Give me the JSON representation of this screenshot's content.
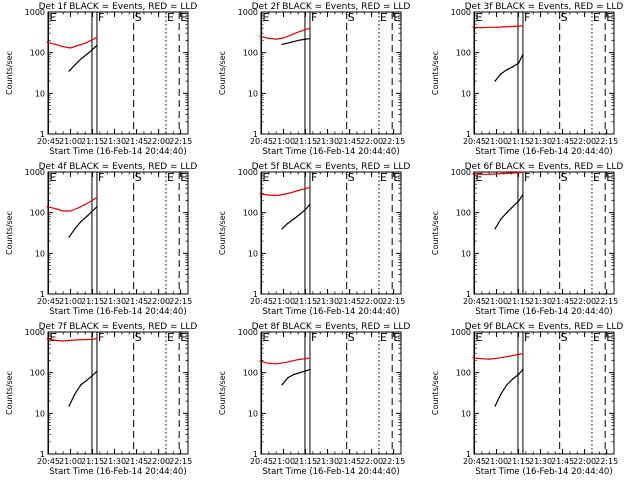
{
  "figure": {
    "xlabel": "Start Time (16-Feb-14 20:44:40)",
    "ylabel": "Counts/sec",
    "x_tick_labels": [
      "20:45",
      "21:00",
      "21:15",
      "21:30",
      "21:45",
      "22:00",
      "22:15"
    ],
    "y_tick_labels": [
      "1",
      "10",
      "100",
      "1000"
    ],
    "marker_labels": [
      "E",
      "F",
      "S",
      "E",
      "E"
    ],
    "colors": {
      "events": "#000000",
      "lld": "#e00000",
      "axes": "#000000"
    }
  },
  "chart_data": [
    {
      "type": "line",
      "title": "Det 1f BLACK = Events, RED = LLD",
      "xlim": [
        "20:44:40",
        "22:20"
      ],
      "ylim": [
        1,
        1000
      ],
      "yscale": "log",
      "series": [
        {
          "color": "#000000",
          "x": [
            "20:59",
            "21:03",
            "21:07",
            "21:11",
            "21:15",
            "21:18"
          ],
          "y": [
            35,
            50,
            70,
            90,
            120,
            150
          ]
        },
        {
          "color": "#e00000",
          "x": [
            "20:44",
            "20:50",
            "20:55",
            "21:00",
            "21:05",
            "21:10",
            "21:15",
            "21:18"
          ],
          "y": [
            180,
            160,
            140,
            130,
            150,
            170,
            210,
            240
          ]
        }
      ],
      "markers": [
        {
          "label": "E",
          "time": "20:45",
          "style": "solid"
        },
        {
          "label": "F",
          "time": "21:18",
          "style": "solid"
        },
        {
          "label": "S",
          "time": "21:43",
          "style": "dashed"
        },
        {
          "label": "E",
          "time": "22:05",
          "style": "dotted"
        },
        {
          "label": "E",
          "time": "22:14",
          "style": "dashed"
        }
      ]
    },
    {
      "type": "line",
      "title": "Det 2f BLACK = Events, RED = LLD",
      "xlim": [
        "20:44:40",
        "22:20"
      ],
      "ylim": [
        1,
        1000
      ],
      "yscale": "log",
      "series": [
        {
          "color": "#000000",
          "x": [
            "20:59",
            "21:05",
            "21:10",
            "21:15",
            "21:18"
          ],
          "y": [
            160,
            180,
            200,
            215,
            220
          ]
        },
        {
          "color": "#e00000",
          "x": [
            "20:44",
            "20:50",
            "20:55",
            "21:00",
            "21:05",
            "21:10",
            "21:15",
            "21:18"
          ],
          "y": [
            250,
            225,
            215,
            230,
            270,
            320,
            370,
            400
          ]
        }
      ],
      "markers": [
        {
          "label": "E",
          "time": "20:45",
          "style": "solid"
        },
        {
          "label": "F",
          "time": "21:18",
          "style": "solid"
        },
        {
          "label": "S",
          "time": "21:43",
          "style": "dashed"
        },
        {
          "label": "E",
          "time": "22:05",
          "style": "dotted"
        },
        {
          "label": "E",
          "time": "22:14",
          "style": "dashed"
        }
      ]
    },
    {
      "type": "line",
      "title": "Det 3f BLACK = Events, RED = LLD",
      "xlim": [
        "20:44:40",
        "22:20"
      ],
      "ylim": [
        1,
        1000
      ],
      "yscale": "log",
      "series": [
        {
          "color": "#000000",
          "x": [
            "20:59",
            "21:03",
            "21:07",
            "21:11",
            "21:15",
            "21:18"
          ],
          "y": [
            20,
            30,
            38,
            45,
            55,
            90
          ]
        },
        {
          "color": "#e00000",
          "x": [
            "20:44",
            "20:50",
            "20:55",
            "21:00",
            "21:05",
            "21:10",
            "21:15",
            "21:18"
          ],
          "y": [
            420,
            410,
            420,
            420,
            430,
            440,
            450,
            460
          ]
        }
      ],
      "markers": [
        {
          "label": "E",
          "time": "20:45",
          "style": "solid"
        },
        {
          "label": "F",
          "time": "21:18",
          "style": "solid"
        },
        {
          "label": "S",
          "time": "21:43",
          "style": "dashed"
        },
        {
          "label": "E",
          "time": "22:05",
          "style": "dotted"
        },
        {
          "label": "E",
          "time": "22:14",
          "style": "dashed"
        }
      ]
    },
    {
      "type": "line",
      "title": "Det 4f BLACK = Events, RED = LLD",
      "xlim": [
        "20:44:40",
        "22:20"
      ],
      "ylim": [
        1,
        1000
      ],
      "yscale": "log",
      "series": [
        {
          "color": "#000000",
          "x": [
            "20:59",
            "21:03",
            "21:07",
            "21:11",
            "21:15",
            "21:18"
          ],
          "y": [
            25,
            40,
            60,
            80,
            110,
            140
          ]
        },
        {
          "color": "#e00000",
          "x": [
            "20:44",
            "20:50",
            "20:55",
            "21:00",
            "21:05",
            "21:10",
            "21:15",
            "21:18"
          ],
          "y": [
            140,
            125,
            110,
            110,
            130,
            160,
            200,
            240
          ]
        }
      ],
      "markers": [
        {
          "label": "E",
          "time": "20:45",
          "style": "solid"
        },
        {
          "label": "F",
          "time": "21:18",
          "style": "solid"
        },
        {
          "label": "S",
          "time": "21:43",
          "style": "dashed"
        },
        {
          "label": "E",
          "time": "22:05",
          "style": "dotted"
        },
        {
          "label": "E",
          "time": "22:14",
          "style": "dashed"
        }
      ]
    },
    {
      "type": "line",
      "title": "Det 5f BLACK = Events, RED = LLD",
      "xlim": [
        "20:44:40",
        "22:20"
      ],
      "ylim": [
        1,
        1000
      ],
      "yscale": "log",
      "series": [
        {
          "color": "#000000",
          "x": [
            "20:59",
            "21:03",
            "21:07",
            "21:11",
            "21:15",
            "21:18"
          ],
          "y": [
            40,
            55,
            70,
            90,
            120,
            160
          ]
        },
        {
          "color": "#e00000",
          "x": [
            "20:44",
            "20:50",
            "20:55",
            "21:00",
            "21:05",
            "21:10",
            "21:15",
            "21:18"
          ],
          "y": [
            290,
            270,
            265,
            280,
            310,
            350,
            390,
            420
          ]
        }
      ],
      "markers": [
        {
          "label": "E",
          "time": "20:45",
          "style": "solid"
        },
        {
          "label": "F",
          "time": "21:18",
          "style": "solid"
        },
        {
          "label": "S",
          "time": "21:43",
          "style": "dashed"
        },
        {
          "label": "E",
          "time": "22:05",
          "style": "dotted"
        },
        {
          "label": "E",
          "time": "22:14",
          "style": "dashed"
        }
      ]
    },
    {
      "type": "line",
      "title": "Det 6f BLACK = Events, RED = LLD",
      "xlim": [
        "20:44:40",
        "22:20"
      ],
      "ylim": [
        1,
        1000
      ],
      "yscale": "log",
      "series": [
        {
          "color": "#000000",
          "x": [
            "20:59",
            "21:03",
            "21:07",
            "21:11",
            "21:15",
            "21:18"
          ],
          "y": [
            40,
            70,
            100,
            140,
            190,
            280
          ]
        },
        {
          "color": "#e00000",
          "x": [
            "20:44",
            "20:50",
            "20:55",
            "21:00",
            "21:05",
            "21:10",
            "21:15",
            "21:18"
          ],
          "y": [
            900,
            880,
            880,
            900,
            920,
            940,
            960,
            980
          ]
        }
      ],
      "markers": [
        {
          "label": "E",
          "time": "20:45",
          "style": "solid"
        },
        {
          "label": "F",
          "time": "21:18",
          "style": "solid"
        },
        {
          "label": "S",
          "time": "21:43",
          "style": "dashed"
        },
        {
          "label": "E",
          "time": "22:05",
          "style": "dotted"
        },
        {
          "label": "E",
          "time": "22:14",
          "style": "dashed"
        }
      ]
    },
    {
      "type": "line",
      "title": "Det 7f BLACK = Events, RED = LLD",
      "xlim": [
        "20:44:40",
        "22:20"
      ],
      "ylim": [
        1,
        1000
      ],
      "yscale": "log",
      "series": [
        {
          "color": "#000000",
          "x": [
            "20:59",
            "21:03",
            "21:07",
            "21:11",
            "21:15",
            "21:18"
          ],
          "y": [
            15,
            30,
            50,
            65,
            85,
            110
          ]
        },
        {
          "color": "#e00000",
          "x": [
            "20:44",
            "20:50",
            "20:55",
            "21:00",
            "21:05",
            "21:10",
            "21:15",
            "21:18"
          ],
          "y": [
            680,
            620,
            600,
            620,
            640,
            650,
            660,
            700
          ]
        }
      ],
      "markers": [
        {
          "label": "E",
          "time": "20:45",
          "style": "solid"
        },
        {
          "label": "F",
          "time": "21:18",
          "style": "solid"
        },
        {
          "label": "S",
          "time": "21:43",
          "style": "dashed"
        },
        {
          "label": "E",
          "time": "22:05",
          "style": "dotted"
        },
        {
          "label": "E",
          "time": "22:14",
          "style": "dashed"
        }
      ]
    },
    {
      "type": "line",
      "title": "Det 8f BLACK = Events, RED = LLD",
      "xlim": [
        "20:44:40",
        "22:20"
      ],
      "ylim": [
        1,
        1000
      ],
      "yscale": "log",
      "series": [
        {
          "color": "#000000",
          "x": [
            "20:59",
            "21:03",
            "21:07",
            "21:11",
            "21:15",
            "21:18"
          ],
          "y": [
            50,
            75,
            90,
            100,
            110,
            120
          ]
        },
        {
          "color": "#e00000",
          "x": [
            "20:44",
            "20:50",
            "20:55",
            "21:00",
            "21:05",
            "21:10",
            "21:15",
            "21:18"
          ],
          "y": [
            190,
            170,
            165,
            175,
            190,
            210,
            220,
            230
          ]
        }
      ],
      "markers": [
        {
          "label": "E",
          "time": "20:45",
          "style": "solid"
        },
        {
          "label": "F",
          "time": "21:18",
          "style": "solid"
        },
        {
          "label": "S",
          "time": "21:43",
          "style": "dashed"
        },
        {
          "label": "E",
          "time": "22:05",
          "style": "dotted"
        },
        {
          "label": "E",
          "time": "22:14",
          "style": "dashed"
        }
      ]
    },
    {
      "type": "line",
      "title": "Det 9f BLACK = Events, RED = LLD",
      "xlim": [
        "20:44:40",
        "22:20"
      ],
      "ylim": [
        1,
        1000
      ],
      "yscale": "log",
      "series": [
        {
          "color": "#000000",
          "x": [
            "20:59",
            "21:03",
            "21:07",
            "21:11",
            "21:15",
            "21:18"
          ],
          "y": [
            15,
            30,
            50,
            70,
            90,
            120
          ]
        },
        {
          "color": "#e00000",
          "x": [
            "20:44",
            "20:50",
            "20:55",
            "21:00",
            "21:05",
            "21:10",
            "21:15",
            "21:18"
          ],
          "y": [
            230,
            220,
            215,
            225,
            240,
            260,
            280,
            300
          ]
        }
      ],
      "markers": [
        {
          "label": "E",
          "time": "20:45",
          "style": "solid"
        },
        {
          "label": "F",
          "time": "21:18",
          "style": "solid"
        },
        {
          "label": "S",
          "time": "21:43",
          "style": "dashed"
        },
        {
          "label": "E",
          "time": "22:05",
          "style": "dotted"
        },
        {
          "label": "E",
          "time": "22:14",
          "style": "dashed"
        }
      ]
    }
  ]
}
